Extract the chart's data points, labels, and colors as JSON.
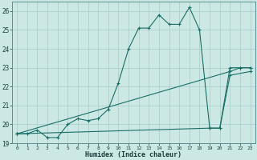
{
  "xlabel": "Humidex (Indice chaleur)",
  "bg_color": "#cce8e4",
  "grid_color": "#aecfcb",
  "line_color": "#1a6e66",
  "xlim": [
    -0.5,
    23.5
  ],
  "ylim": [
    19,
    26.5
  ],
  "yticks": [
    19,
    20,
    21,
    22,
    23,
    24,
    25,
    26
  ],
  "xticks": [
    0,
    1,
    2,
    3,
    4,
    5,
    6,
    7,
    8,
    9,
    10,
    11,
    12,
    13,
    14,
    15,
    16,
    17,
    18,
    19,
    20,
    21,
    22,
    23
  ],
  "series": [
    {
      "x": [
        0,
        1,
        2,
        3,
        4,
        5,
        6,
        7,
        8,
        9,
        10,
        11,
        12,
        13,
        14,
        15,
        16,
        17,
        18,
        19,
        20,
        21,
        22,
        23
      ],
      "y": [
        19.5,
        19.5,
        19.7,
        19.3,
        19.3,
        20.0,
        20.3,
        20.2,
        20.3,
        20.8,
        22.2,
        24.0,
        25.1,
        25.1,
        25.8,
        25.3,
        25.3,
        26.2,
        25.0,
        19.8,
        19.8,
        23.0,
        23.0,
        23.0
      ]
    },
    {
      "x": [
        0,
        19,
        20,
        21,
        23
      ],
      "y": [
        19.5,
        19.8,
        19.8,
        22.6,
        22.8
      ]
    },
    {
      "x": [
        0,
        21,
        22,
        23
      ],
      "y": [
        19.5,
        22.8,
        23.0,
        23.0
      ]
    }
  ]
}
